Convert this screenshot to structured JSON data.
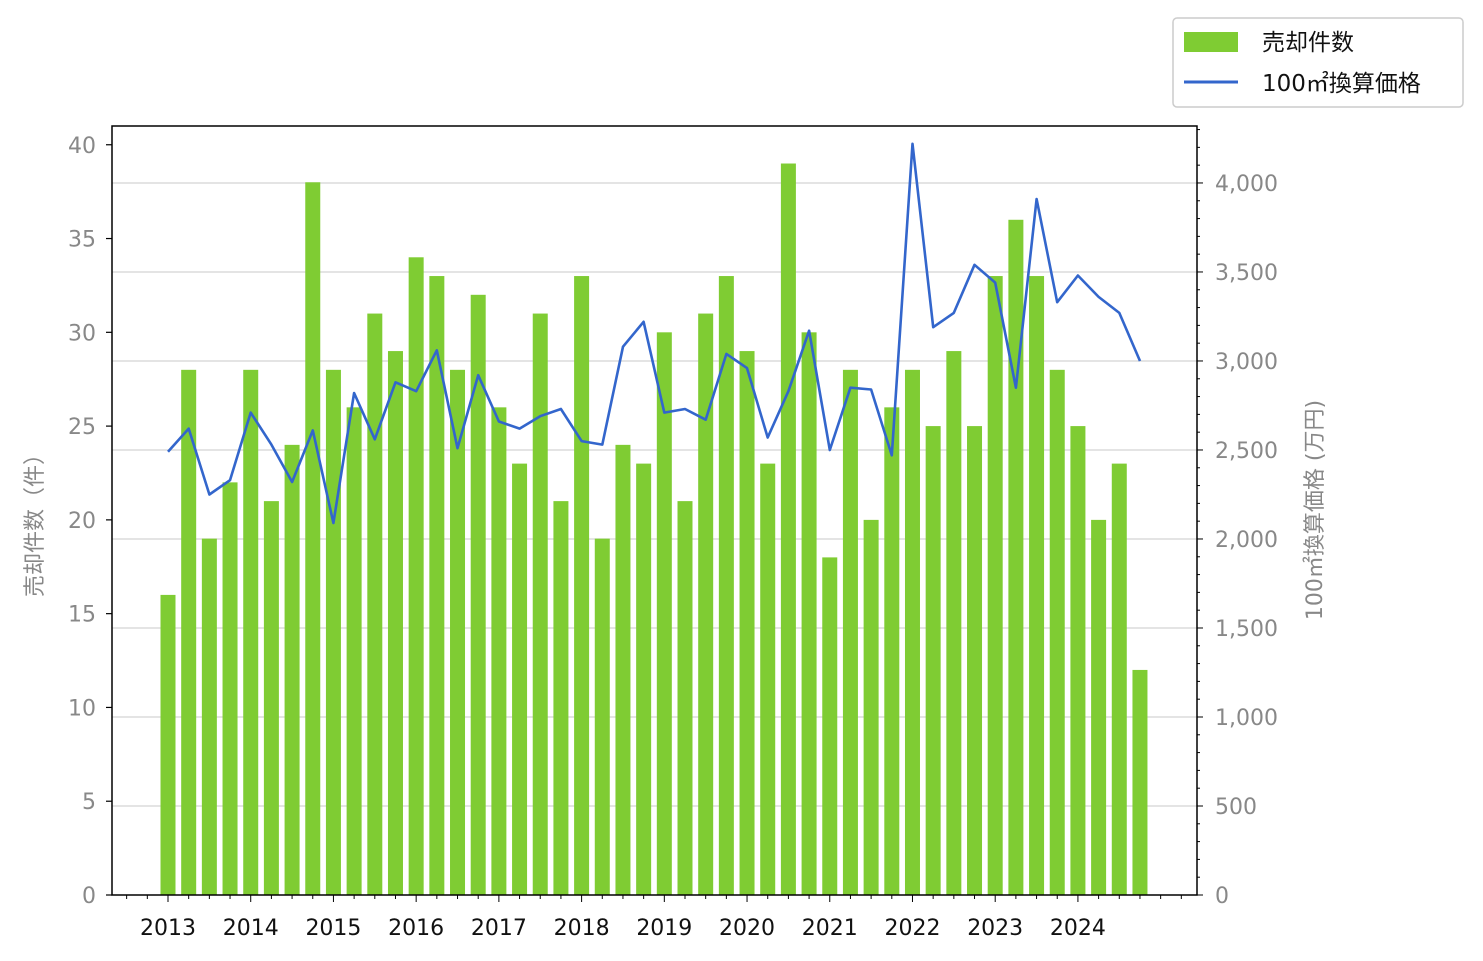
{
  "chart_data": {
    "type": "bar+line",
    "title": "",
    "x": [
      "2013-Q1",
      "2013-Q2",
      "2013-Q3",
      "2013-Q4",
      "2014-Q1",
      "2014-Q2",
      "2014-Q3",
      "2014-Q4",
      "2015-Q1",
      "2015-Q2",
      "2015-Q3",
      "2015-Q4",
      "2016-Q1",
      "2016-Q2",
      "2016-Q3",
      "2016-Q4",
      "2017-Q1",
      "2017-Q2",
      "2017-Q3",
      "2017-Q4",
      "2018-Q1",
      "2018-Q2",
      "2018-Q3",
      "2018-Q4",
      "2019-Q1",
      "2019-Q2",
      "2019-Q3",
      "2019-Q4",
      "2020-Q1",
      "2020-Q2",
      "2020-Q3",
      "2020-Q4",
      "2021-Q1",
      "2021-Q2",
      "2021-Q3",
      "2021-Q4",
      "2022-Q1",
      "2022-Q2",
      "2022-Q3",
      "2022-Q4",
      "2023-Q1",
      "2023-Q2",
      "2023-Q3",
      "2023-Q4",
      "2024-Q1",
      "2024-Q2",
      "2024-Q3",
      "2024-Q4"
    ],
    "x_tick_labels": [
      "2013",
      "2014",
      "2015",
      "2016",
      "2017",
      "2018",
      "2019",
      "2020",
      "2021",
      "2022",
      "2023",
      "2024"
    ],
    "series": [
      {
        "name": "売却件数",
        "kind": "bar",
        "axis": "left",
        "color": "#7fcc33",
        "values": [
          16,
          28,
          19,
          22,
          28,
          21,
          24,
          38,
          28,
          26,
          31,
          29,
          34,
          33,
          28,
          32,
          26,
          23,
          31,
          21,
          33,
          19,
          24,
          23,
          30,
          21,
          31,
          33,
          29,
          23,
          39,
          30,
          18,
          28,
          20,
          26,
          28,
          25,
          29,
          25,
          33,
          36,
          33,
          28,
          25,
          20,
          23,
          12
        ]
      },
      {
        "name": "100㎡換算価格",
        "kind": "line",
        "axis": "right",
        "color": "#3366cc",
        "values": [
          2490,
          2620,
          2250,
          2330,
          2710,
          2530,
          2320,
          2610,
          2090,
          2820,
          2560,
          2880,
          2830,
          3060,
          2510,
          2920,
          2660,
          2620,
          2690,
          2730,
          2550,
          2530,
          3080,
          3220,
          2710,
          2730,
          2670,
          3040,
          2960,
          2570,
          2830,
          3170,
          2500,
          2850,
          2840,
          2470,
          4220,
          3190,
          3270,
          3540,
          3440,
          2850,
          3910,
          3330,
          3480,
          3360,
          3270,
          3000
        ]
      }
    ],
    "ylabel_left": "売却件数（件）",
    "ylabel_right": "100㎡換算価格 (万円)",
    "ylim_left": [
      0,
      41
    ],
    "ylim_right": [
      0,
      4320
    ],
    "yticks_left": [
      "0",
      "5",
      "10",
      "15",
      "20",
      "25",
      "30",
      "35",
      "40"
    ],
    "yticks_right": [
      "0",
      "500",
      "1,000",
      "1,500",
      "2,000",
      "2,500",
      "3,000",
      "3,500",
      "4,000"
    ],
    "grid": "horizontal, right axis ticks",
    "legend_position": "top-right, outside plot"
  }
}
